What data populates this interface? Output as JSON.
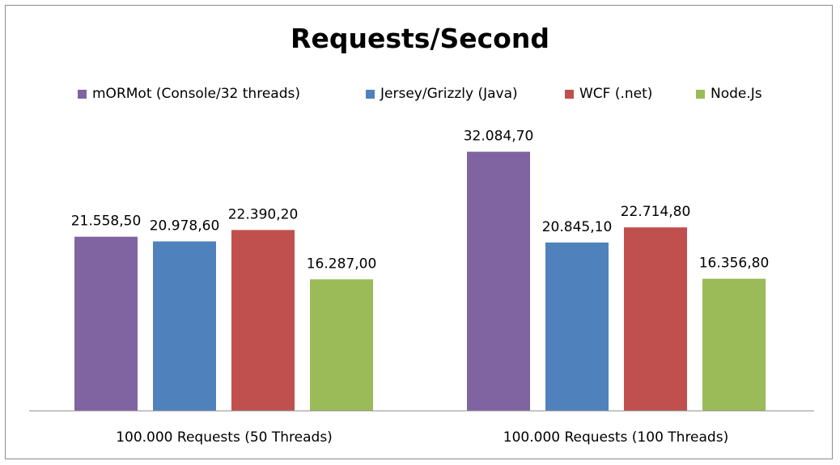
{
  "chart_data": {
    "type": "bar",
    "title": "Requests/Second",
    "categories": [
      "100.000 Requests (50 Threads)",
      "100.000 Requests (100 Threads)"
    ],
    "series": [
      {
        "name": "mORMot (Console/32 threads)",
        "color": "#8064a2",
        "values": [
          21558.5,
          32084.7
        ],
        "labels": [
          "21.558,50",
          "32.084,70"
        ]
      },
      {
        "name": "Jersey/Grizzly (Java)",
        "color": "#4f81bd",
        "values": [
          20978.6,
          20845.1
        ],
        "labels": [
          "20.978,60",
          "20.845,10"
        ]
      },
      {
        "name": "WCF (.net)",
        "color": "#c0504d",
        "values": [
          22390.2,
          22714.8
        ],
        "labels": [
          "22.390,20",
          "22.714,80"
        ]
      },
      {
        "name": "Node.Js",
        "color": "#9bbb59",
        "values": [
          16287.0,
          16356.8
        ],
        "labels": [
          "16.287,00",
          "16.356,80"
        ]
      }
    ],
    "ylim": [
      0,
      40000
    ],
    "grid": false,
    "legend_position": "top"
  }
}
